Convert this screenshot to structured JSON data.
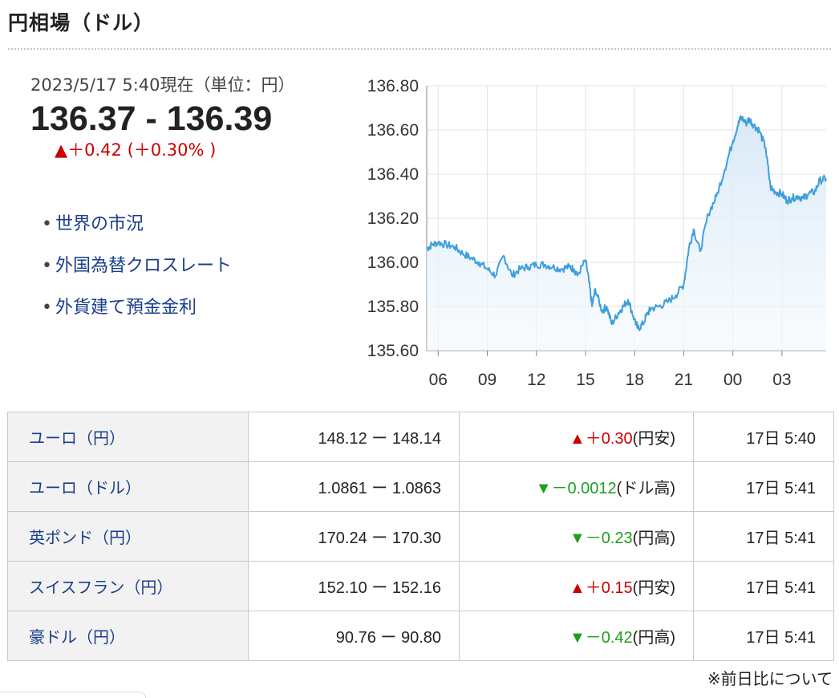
{
  "header": {
    "title": "円相場（ドル）"
  },
  "quote": {
    "timestamp": "2023/5/17 5:40現在（単位：円）",
    "rate": "136.37 - 136.39",
    "change": "▲＋0.42 (＋0.30% )"
  },
  "links": [
    {
      "bullet": "•",
      "label": "世界の市況"
    },
    {
      "bullet": "•",
      "label": "外国為替クロスレート"
    },
    {
      "bullet": "•",
      "label": "外貨建て預金金利"
    }
  ],
  "colors": {
    "line": "#3f9fdc",
    "area": "#eaf3fb",
    "up": "#cc0000",
    "down": "#1e9e1e",
    "link": "#1a3e8c",
    "grid": "#e3e3e3"
  },
  "chart_data": {
    "type": "line",
    "ylim": [
      135.6,
      136.8
    ],
    "y_ticks": [
      "136.80",
      "136.60",
      "136.40",
      "136.20",
      "136.00",
      "135.80",
      "135.60"
    ],
    "x_ticks": [
      "06",
      "09",
      "12",
      "15",
      "18",
      "21",
      "00",
      "03"
    ],
    "x_tick_hours": [
      6,
      9,
      12,
      15,
      18,
      21,
      24,
      27
    ],
    "x_range_hours": [
      5.3,
      29.7
    ],
    "grid": true,
    "series": [
      {
        "x": [
          5.3,
          5.6,
          6.0,
          6.5,
          7.0,
          7.5,
          8.0,
          8.5,
          9.0,
          9.5,
          10.0,
          10.5,
          11.0,
          11.5,
          12.0,
          12.5,
          13.0,
          13.5,
          14.0,
          14.3,
          14.5,
          15.0,
          15.2,
          15.4,
          15.6,
          16.0,
          16.3,
          16.6,
          17.0,
          17.3,
          17.6,
          18.0,
          18.2,
          18.5,
          18.8,
          19.0,
          19.5,
          20.0,
          20.5,
          21.0,
          21.3,
          21.6,
          22.0,
          22.5,
          23.0,
          23.5,
          24.0,
          24.3,
          24.5,
          24.8,
          25.0,
          25.3,
          25.6,
          26.0,
          26.3,
          26.6,
          27.0,
          27.3,
          27.6,
          28.0,
          28.3,
          28.6,
          29.0,
          29.3,
          29.7
        ],
        "y": [
          136.06,
          136.08,
          136.09,
          136.08,
          136.07,
          136.04,
          136.02,
          136.0,
          135.97,
          135.94,
          136.03,
          135.94,
          135.97,
          135.98,
          135.99,
          135.99,
          135.98,
          135.97,
          135.98,
          135.97,
          135.94,
          136.01,
          135.92,
          135.8,
          135.88,
          135.78,
          135.8,
          135.72,
          135.77,
          135.8,
          135.83,
          135.74,
          135.7,
          135.72,
          135.77,
          135.79,
          135.8,
          135.82,
          135.85,
          135.9,
          136.06,
          136.15,
          136.05,
          136.22,
          136.3,
          136.42,
          136.55,
          136.62,
          136.66,
          136.63,
          136.65,
          136.62,
          136.6,
          136.52,
          136.34,
          136.32,
          136.31,
          136.28,
          136.29,
          136.3,
          136.29,
          136.31,
          136.32,
          136.37,
          136.38
        ]
      }
    ]
  },
  "table": {
    "rows": [
      {
        "name": "ユーロ（円）",
        "rate": "148.12 ー 148.14",
        "arrow": "▲",
        "change": "＋0.30",
        "suffix": "(円安)",
        "dir": "up",
        "time": "17日 5:40"
      },
      {
        "name": "ユーロ（ドル）",
        "rate": "1.0861 ー 1.0863",
        "arrow": "▼",
        "change": "－0.0012",
        "suffix": "(ドル高)",
        "dir": "down",
        "time": "17日 5:41"
      },
      {
        "name": "英ポンド（円）",
        "rate": "170.24 ー 170.30",
        "arrow": "▼",
        "change": "－0.23",
        "suffix": "(円高)",
        "dir": "down",
        "time": "17日 5:41"
      },
      {
        "name": "スイスフラン（円）",
        "rate": "152.10 ー 152.16",
        "arrow": "▲",
        "change": "＋0.15",
        "suffix": "(円安)",
        "dir": "up",
        "time": "17日 5:41"
      },
      {
        "name": "豪ドル（円）",
        "rate": "90.76 ー 90.80",
        "arrow": "▼",
        "change": "－0.42",
        "suffix": "(円高)",
        "dir": "down",
        "time": "17日 5:41"
      }
    ]
  },
  "footnote": "※前日比について"
}
